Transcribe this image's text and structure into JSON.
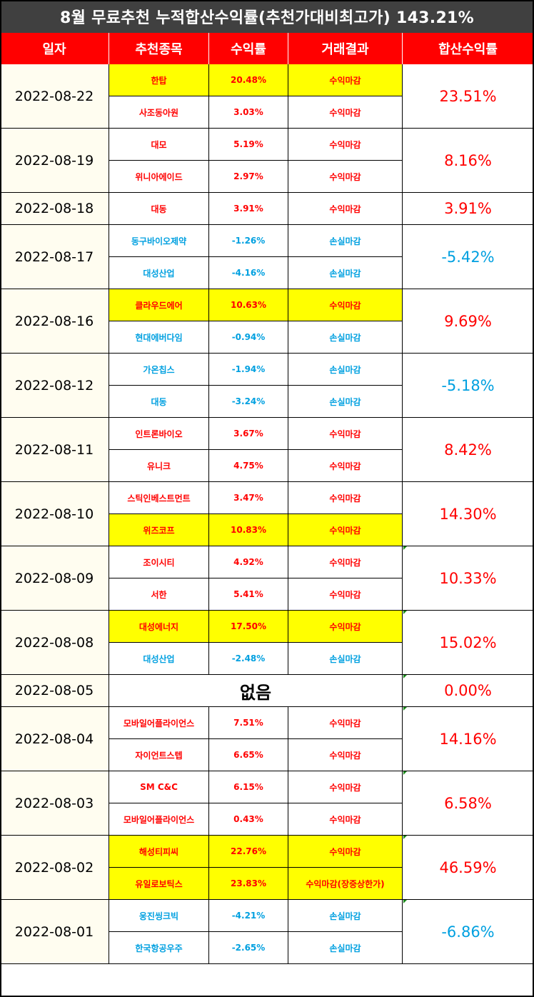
{
  "title": "8월 무료추천 누적합산수익률(추천가대비최고가) 143.21%",
  "headers": [
    "일자",
    "추천종목",
    "수익률",
    "거래결과",
    "합산수익률"
  ],
  "colors": {
    "profit": "#ff0000",
    "loss": "#00a0e0",
    "highlight": "#ffff00",
    "header": "#ff0000",
    "title_bg": "#404040"
  },
  "rows": [
    {
      "date": "2022-08-22",
      "sum": "23.51%",
      "sum_sign": "profit",
      "items": [
        {
          "stock": "한탑",
          "rate": "20.48%",
          "result": "수익마감",
          "sign": "profit",
          "highlight": true
        },
        {
          "stock": "사조동아원",
          "rate": "3.03%",
          "result": "수익마감",
          "sign": "profit",
          "highlight": false
        }
      ]
    },
    {
      "date": "2022-08-19",
      "sum": "8.16%",
      "sum_sign": "profit",
      "items": [
        {
          "stock": "대모",
          "rate": "5.19%",
          "result": "수익마감",
          "sign": "profit",
          "highlight": false
        },
        {
          "stock": "위니아에이드",
          "rate": "2.97%",
          "result": "수익마감",
          "sign": "profit",
          "highlight": false
        }
      ]
    },
    {
      "date": "2022-08-18",
      "sum": "3.91%",
      "sum_sign": "profit",
      "items": [
        {
          "stock": "대동",
          "rate": "3.91%",
          "result": "수익마감",
          "sign": "profit",
          "highlight": false
        }
      ]
    },
    {
      "date": "2022-08-17",
      "sum": "-5.42%",
      "sum_sign": "loss",
      "items": [
        {
          "stock": "동구바이오제약",
          "rate": "-1.26%",
          "result": "손실마감",
          "sign": "loss",
          "highlight": false
        },
        {
          "stock": "대성산업",
          "rate": "-4.16%",
          "result": "손실마감",
          "sign": "loss",
          "highlight": false
        }
      ]
    },
    {
      "date": "2022-08-16",
      "sum": "9.69%",
      "sum_sign": "profit",
      "items": [
        {
          "stock": "클라우드에어",
          "rate": "10.63%",
          "result": "수익마감",
          "sign": "profit",
          "highlight": true
        },
        {
          "stock": "현대에버다임",
          "rate": "-0.94%",
          "result": "손실마감",
          "sign": "loss",
          "highlight": false
        }
      ]
    },
    {
      "date": "2022-08-12",
      "sum": "-5.18%",
      "sum_sign": "loss",
      "items": [
        {
          "stock": "가온칩스",
          "rate": "-1.94%",
          "result": "손실마감",
          "sign": "loss",
          "highlight": false
        },
        {
          "stock": "대동",
          "rate": "-3.24%",
          "result": "손실마감",
          "sign": "loss",
          "highlight": false
        }
      ]
    },
    {
      "date": "2022-08-11",
      "sum": "8.42%",
      "sum_sign": "profit",
      "items": [
        {
          "stock": "인트론바이오",
          "rate": "3.67%",
          "result": "수익마감",
          "sign": "profit",
          "highlight": false
        },
        {
          "stock": "유니크",
          "rate": "4.75%",
          "result": "수익마감",
          "sign": "profit",
          "highlight": false
        }
      ]
    },
    {
      "date": "2022-08-10",
      "sum": "14.30%",
      "sum_sign": "profit",
      "items": [
        {
          "stock": "스틱인베스트먼트",
          "rate": "3.47%",
          "result": "수익마감",
          "sign": "profit",
          "highlight": false
        },
        {
          "stock": "위즈코프",
          "rate": "10.83%",
          "result": "수익마감",
          "sign": "profit",
          "highlight": true
        }
      ]
    },
    {
      "date": "2022-08-09",
      "sum": "10.33%",
      "sum_sign": "profit",
      "items": [
        {
          "stock": "조이시티",
          "rate": "4.92%",
          "result": "수익마감",
          "sign": "profit",
          "highlight": false
        },
        {
          "stock": "서한",
          "rate": "5.41%",
          "result": "수익마감",
          "sign": "profit",
          "highlight": false
        }
      ]
    },
    {
      "date": "2022-08-08",
      "sum": "15.02%",
      "sum_sign": "profit",
      "items": [
        {
          "stock": "대성에너지",
          "rate": "17.50%",
          "result": "수익마감",
          "sign": "profit",
          "highlight": true
        },
        {
          "stock": "대성산업",
          "rate": "-2.48%",
          "result": "손실마감",
          "sign": "loss",
          "highlight": false
        }
      ]
    },
    {
      "date": "2022-08-05",
      "sum": "0.00%",
      "sum_sign": "profit",
      "none": "없음",
      "items": []
    },
    {
      "date": "2022-08-04",
      "sum": "14.16%",
      "sum_sign": "profit",
      "items": [
        {
          "stock": "모바일어플라이언스",
          "rate": "7.51%",
          "result": "수익마감",
          "sign": "profit",
          "highlight": false
        },
        {
          "stock": "자이언트스텝",
          "rate": "6.65%",
          "result": "수익마감",
          "sign": "profit",
          "highlight": false
        }
      ]
    },
    {
      "date": "2022-08-03",
      "sum": "6.58%",
      "sum_sign": "profit",
      "items": [
        {
          "stock": "SM C&C",
          "rate": "6.15%",
          "result": "수익마감",
          "sign": "profit",
          "highlight": false
        },
        {
          "stock": "모바일어플라이언스",
          "rate": "0.43%",
          "result": "수익마감",
          "sign": "profit",
          "highlight": false
        }
      ]
    },
    {
      "date": "2022-08-02",
      "sum": "46.59%",
      "sum_sign": "profit",
      "items": [
        {
          "stock": "해성티피씨",
          "rate": "22.76%",
          "result": "수익마감",
          "sign": "profit",
          "highlight": true
        },
        {
          "stock": "유일로보틱스",
          "rate": "23.83%",
          "result": "수익마감(장중상한가)",
          "sign": "profit",
          "highlight": true
        }
      ]
    },
    {
      "date": "2022-08-01",
      "sum": "-6.86%",
      "sum_sign": "loss",
      "items": [
        {
          "stock": "웅진씽크빅",
          "rate": "-4.21%",
          "result": "손실마감",
          "sign": "loss",
          "highlight": false
        },
        {
          "stock": "한국항공우주",
          "rate": "-2.65%",
          "result": "손실마감",
          "sign": "loss",
          "highlight": false
        }
      ]
    }
  ]
}
